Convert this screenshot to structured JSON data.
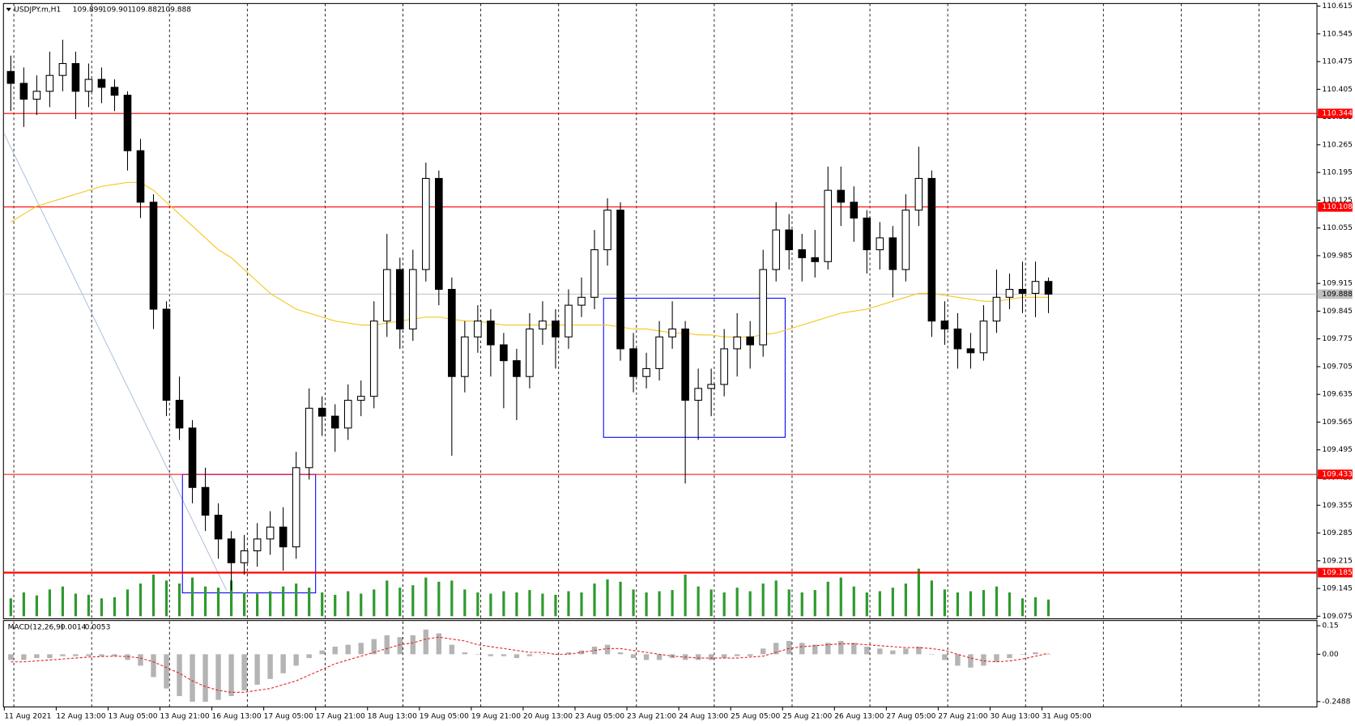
{
  "chart_data": {
    "type": "candlestick",
    "symbol": "USDJPY.m,H1",
    "quote": [
      109.899,
      109.901,
      109.882,
      109.888
    ],
    "ylim": [
      109.0685,
      110.6215
    ],
    "yticks": [
      110.615,
      110.545,
      110.475,
      110.405,
      110.335,
      110.265,
      110.195,
      110.125,
      110.055,
      109.985,
      109.915,
      109.845,
      109.775,
      109.705,
      109.635,
      109.565,
      109.495,
      109.425,
      109.355,
      109.285,
      109.215,
      109.145,
      109.075
    ],
    "categories": [
      "11 Aug 2021",
      "12 Aug 13:00",
      "13 Aug 05:00",
      "13 Aug 21:00",
      "16 Aug 13:00",
      "17 Aug 05:00",
      "17 Aug 21:00",
      "18 Aug 13:00",
      "19 Aug 05:00",
      "19 Aug 21:00",
      "20 Aug 13:00",
      "23 Aug 05:00",
      "23 Aug 21:00",
      "24 Aug 13:00",
      "25 Aug 05:00",
      "25 Aug 21:00",
      "26 Aug 13:00",
      "27 Aug 05:00",
      "27 Aug 21:00",
      "30 Aug 13:00",
      "31 Aug 05:00"
    ],
    "hlines": [
      {
        "value": 110.344,
        "color": "#ff0000"
      },
      {
        "value": 110.108,
        "color": "#ff0000"
      },
      {
        "value": 109.433,
        "color": "#ff0000"
      },
      {
        "value": 109.185,
        "color": "#ff0000"
      }
    ],
    "ohlc": [
      [
        110.45,
        110.49,
        110.35,
        110.42
      ],
      [
        110.42,
        110.46,
        110.31,
        110.38
      ],
      [
        110.38,
        110.44,
        110.34,
        110.4
      ],
      [
        110.4,
        110.5,
        110.36,
        110.44
      ],
      [
        110.44,
        110.53,
        110.4,
        110.47
      ],
      [
        110.47,
        110.5,
        110.33,
        110.4
      ],
      [
        110.4,
        110.47,
        110.36,
        110.43
      ],
      [
        110.43,
        110.46,
        110.37,
        110.41
      ],
      [
        110.41,
        110.43,
        110.35,
        110.39
      ],
      [
        110.39,
        110.4,
        110.2,
        110.25
      ],
      [
        110.25,
        110.28,
        110.08,
        110.12
      ],
      [
        110.12,
        110.14,
        109.8,
        109.85
      ],
      [
        109.85,
        109.87,
        109.58,
        109.62
      ],
      [
        109.62,
        109.68,
        109.52,
        109.55
      ],
      [
        109.55,
        109.57,
        109.36,
        109.4
      ],
      [
        109.4,
        109.45,
        109.29,
        109.33
      ],
      [
        109.33,
        109.36,
        109.22,
        109.27
      ],
      [
        109.27,
        109.29,
        109.14,
        109.21
      ],
      [
        109.21,
        109.28,
        109.18,
        109.24
      ],
      [
        109.24,
        109.31,
        109.2,
        109.27
      ],
      [
        109.27,
        109.34,
        109.23,
        109.3
      ],
      [
        109.3,
        109.35,
        109.19,
        109.25
      ],
      [
        109.25,
        109.49,
        109.22,
        109.45
      ],
      [
        109.45,
        109.65,
        109.42,
        109.6
      ],
      [
        109.6,
        109.63,
        109.53,
        109.58
      ],
      [
        109.58,
        109.61,
        109.49,
        109.55
      ],
      [
        109.55,
        109.66,
        109.52,
        109.62
      ],
      [
        109.62,
        109.67,
        109.58,
        109.63
      ],
      [
        109.63,
        109.87,
        109.6,
        109.82
      ],
      [
        109.82,
        110.04,
        109.78,
        109.95
      ],
      [
        109.95,
        109.98,
        109.75,
        109.8
      ],
      [
        109.8,
        110.0,
        109.77,
        109.95
      ],
      [
        109.95,
        110.22,
        109.92,
        110.18
      ],
      [
        110.18,
        110.2,
        109.86,
        109.9
      ],
      [
        109.9,
        109.93,
        109.48,
        109.68
      ],
      [
        109.68,
        109.82,
        109.64,
        109.78
      ],
      [
        109.78,
        109.86,
        109.74,
        109.82
      ],
      [
        109.82,
        109.85,
        109.68,
        109.76
      ],
      [
        109.76,
        109.79,
        109.6,
        109.72
      ],
      [
        109.72,
        109.75,
        109.57,
        109.68
      ],
      [
        109.68,
        109.84,
        109.65,
        109.8
      ],
      [
        109.8,
        109.87,
        109.76,
        109.82
      ],
      [
        109.82,
        109.85,
        109.7,
        109.78
      ],
      [
        109.78,
        109.9,
        109.75,
        109.86
      ],
      [
        109.86,
        109.93,
        109.83,
        109.88
      ],
      [
        109.88,
        110.05,
        109.85,
        110.0
      ],
      [
        110.0,
        110.13,
        109.96,
        110.1
      ],
      [
        110.1,
        110.12,
        109.72,
        109.75
      ],
      [
        109.75,
        109.79,
        109.64,
        109.68
      ],
      [
        109.68,
        109.74,
        109.65,
        109.7
      ],
      [
        109.7,
        109.82,
        109.67,
        109.78
      ],
      [
        109.78,
        109.87,
        109.75,
        109.8
      ],
      [
        109.8,
        109.82,
        109.41,
        109.62
      ],
      [
        109.62,
        109.7,
        109.52,
        109.65
      ],
      [
        109.65,
        109.7,
        109.58,
        109.66
      ],
      [
        109.66,
        109.8,
        109.63,
        109.75
      ],
      [
        109.75,
        109.84,
        109.68,
        109.78
      ],
      [
        109.78,
        109.82,
        109.7,
        109.76
      ],
      [
        109.76,
        110.0,
        109.73,
        109.95
      ],
      [
        109.95,
        110.12,
        109.92,
        110.05
      ],
      [
        110.05,
        110.09,
        109.95,
        110.0
      ],
      [
        110.0,
        110.04,
        109.92,
        109.98
      ],
      [
        109.98,
        110.05,
        109.93,
        109.97
      ],
      [
        109.97,
        110.21,
        109.95,
        110.15
      ],
      [
        110.15,
        110.21,
        110.06,
        110.12
      ],
      [
        110.12,
        110.16,
        110.02,
        110.08
      ],
      [
        110.08,
        110.1,
        109.94,
        110.0
      ],
      [
        110.0,
        110.07,
        109.95,
        110.03
      ],
      [
        110.03,
        110.06,
        109.88,
        109.95
      ],
      [
        109.95,
        110.14,
        109.92,
        110.1
      ],
      [
        110.1,
        110.26,
        110.06,
        110.18
      ],
      [
        110.18,
        110.2,
        109.78,
        109.82
      ],
      [
        109.82,
        109.87,
        109.76,
        109.8
      ],
      [
        109.8,
        109.84,
        109.7,
        109.75
      ],
      [
        109.75,
        109.79,
        109.7,
        109.74
      ],
      [
        109.74,
        109.86,
        109.72,
        109.82
      ],
      [
        109.82,
        109.95,
        109.79,
        109.88
      ],
      [
        109.88,
        109.94,
        109.85,
        109.9
      ],
      [
        109.9,
        109.97,
        109.84,
        109.89
      ],
      [
        109.89,
        109.97,
        109.83,
        109.92
      ],
      [
        109.92,
        109.93,
        109.84,
        109.888
      ]
    ],
    "volume": {
      "color": "#2e9a2e",
      "values": [
        30,
        40,
        35,
        45,
        50,
        38,
        36,
        30,
        32,
        45,
        55,
        70,
        60,
        55,
        65,
        50,
        48,
        60,
        40,
        38,
        42,
        50,
        55,
        48,
        40,
        36,
        42,
        38,
        45,
        60,
        48,
        52,
        65,
        58,
        60,
        45,
        40,
        38,
        42,
        40,
        44,
        38,
        36,
        42,
        40,
        55,
        62,
        58,
        45,
        40,
        42,
        44,
        70,
        50,
        45,
        40,
        48,
        42,
        55,
        60,
        45,
        40,
        44,
        58,
        65,
        50,
        40,
        42,
        48,
        55,
        80,
        60,
        45,
        40,
        42,
        44,
        50,
        40,
        30,
        32,
        28
      ]
    },
    "ma": {
      "color": "#f5c518",
      "values": [
        110.07,
        110.09,
        110.11,
        110.12,
        110.13,
        110.14,
        110.15,
        110.16,
        110.165,
        110.17,
        110.17,
        110.15,
        110.12,
        110.09,
        110.06,
        110.03,
        110.0,
        109.98,
        109.95,
        109.92,
        109.89,
        109.87,
        109.85,
        109.84,
        109.83,
        109.82,
        109.815,
        109.81,
        109.81,
        109.815,
        109.82,
        109.825,
        109.83,
        109.83,
        109.825,
        109.82,
        109.82,
        109.815,
        109.81,
        109.81,
        109.81,
        109.81,
        109.81,
        109.81,
        109.81,
        109.81,
        109.81,
        109.805,
        109.8,
        109.8,
        109.795,
        109.79,
        109.79,
        109.785,
        109.785,
        109.78,
        109.78,
        109.78,
        109.785,
        109.79,
        109.8,
        109.81,
        109.82,
        109.83,
        109.84,
        109.845,
        109.85,
        109.86,
        109.87,
        109.88,
        109.89,
        109.89,
        109.885,
        109.88,
        109.875,
        109.87,
        109.87,
        109.875,
        109.88,
        109.88,
        109.88
      ]
    },
    "macd": {
      "title": "MACD(12,26,9)",
      "ylim": [
        -0.277,
        0.173
      ],
      "yticks": [
        0.15,
        {
          "value": 0,
          "label": "0.00"
        },
        -0.2488
      ],
      "histogram": {
        "color": "#b4b4b4",
        "values": [
          -0.03,
          -0.03,
          -0.02,
          -0.02,
          -0.01,
          -0.01,
          -0.01,
          -0.01,
          -0.01,
          -0.03,
          -0.06,
          -0.12,
          -0.18,
          -0.22,
          -0.25,
          -0.25,
          -0.24,
          -0.22,
          -0.19,
          -0.16,
          -0.13,
          -0.1,
          -0.06,
          -0.02,
          0.02,
          0.04,
          0.05,
          0.06,
          0.08,
          0.1,
          0.09,
          0.1,
          0.13,
          0.11,
          0.05,
          0.01,
          0.0,
          -0.01,
          -0.01,
          -0.02,
          -0.01,
          0.0,
          0.0,
          0.01,
          0.02,
          0.04,
          0.05,
          0.01,
          -0.02,
          -0.03,
          -0.03,
          -0.02,
          -0.03,
          -0.03,
          -0.03,
          -0.02,
          -0.01,
          -0.01,
          0.03,
          0.06,
          0.07,
          0.06,
          0.05,
          0.06,
          0.07,
          0.06,
          0.04,
          0.03,
          0.02,
          0.03,
          0.04,
          0.0,
          -0.03,
          -0.06,
          -0.07,
          -0.06,
          -0.04,
          -0.02,
          0.0,
          0.01,
          0.0014
        ]
      },
      "signal": {
        "color": "#e02020",
        "values": [
          -0.04,
          -0.04,
          -0.035,
          -0.03,
          -0.025,
          -0.02,
          -0.015,
          -0.012,
          -0.01,
          -0.012,
          -0.02,
          -0.04,
          -0.07,
          -0.1,
          -0.14,
          -0.17,
          -0.19,
          -0.2,
          -0.2,
          -0.19,
          -0.18,
          -0.16,
          -0.14,
          -0.11,
          -0.08,
          -0.05,
          -0.03,
          -0.01,
          0.01,
          0.03,
          0.05,
          0.06,
          0.08,
          0.09,
          0.08,
          0.07,
          0.05,
          0.04,
          0.03,
          0.02,
          0.01,
          0.01,
          0.0,
          0.0,
          0.01,
          0.02,
          0.03,
          0.03,
          0.02,
          0.01,
          0.0,
          -0.01,
          -0.015,
          -0.02,
          -0.02,
          -0.02,
          -0.02,
          -0.015,
          -0.01,
          0.01,
          0.03,
          0.04,
          0.045,
          0.05,
          0.055,
          0.055,
          0.05,
          0.045,
          0.04,
          0.035,
          0.035,
          0.03,
          0.02,
          0.0,
          -0.02,
          -0.035,
          -0.04,
          -0.035,
          -0.025,
          -0.01,
          0.0053
        ]
      }
    }
  }
}
